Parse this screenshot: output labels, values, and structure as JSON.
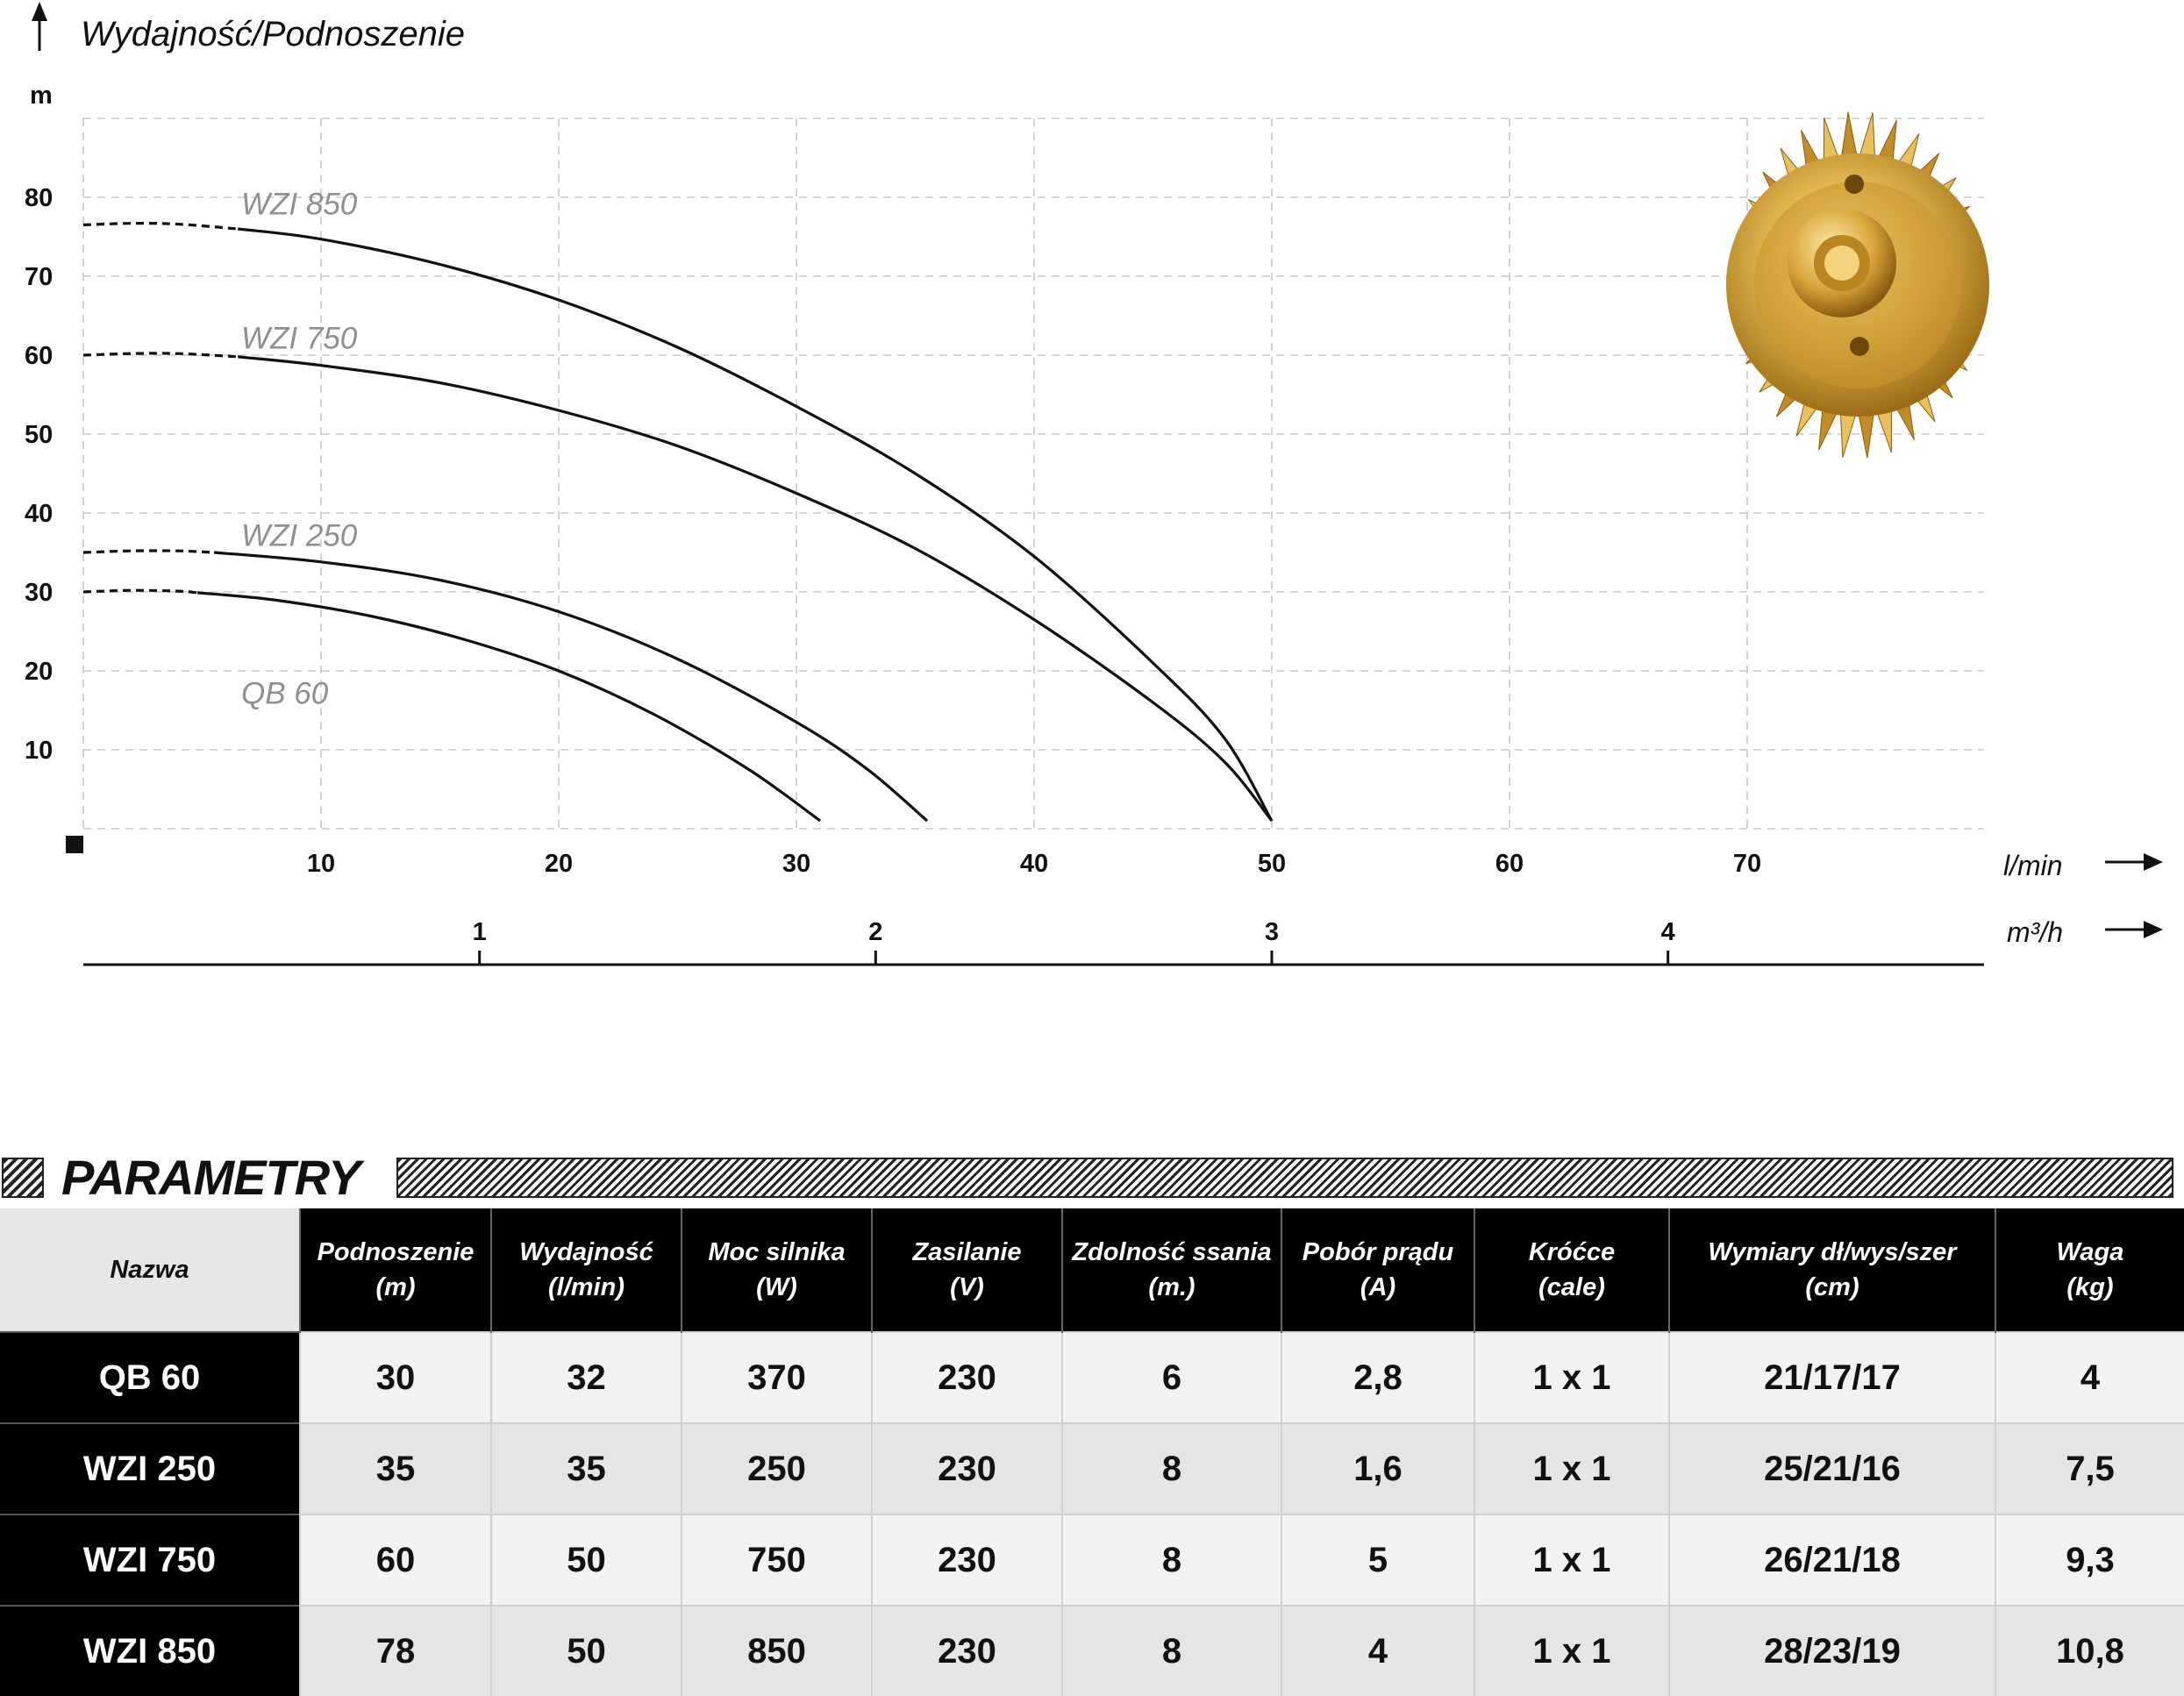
{
  "chart_data": {
    "type": "line",
    "title": "Wydajność/Podnoszenie",
    "ylabel": "m",
    "xlabel": "l/min",
    "secondary_x_label": "m³/h",
    "x_ticks": [
      10,
      20,
      30,
      40,
      50,
      60,
      70
    ],
    "y_ticks": [
      10,
      20,
      30,
      40,
      50,
      60,
      70,
      80
    ],
    "secondary_x_ticks": [
      1,
      2,
      3,
      4
    ],
    "xlim": [
      0,
      80
    ],
    "ylim": [
      0,
      90
    ],
    "grid": true,
    "series": [
      {
        "name": "WZI 850",
        "x": [
          0,
          2,
          4,
          6.5,
          10,
          15,
          20,
          25,
          30,
          35,
          40,
          45,
          48,
          50
        ],
        "y": [
          76.5,
          76.7,
          76.6,
          76,
          74.7,
          71.5,
          67,
          61,
          53.5,
          45,
          34.5,
          21,
          11.5,
          1
        ]
      },
      {
        "name": "WZI 750",
        "x": [
          0,
          2,
          4,
          6.5,
          10,
          15,
          20,
          25,
          30,
          35,
          40,
          45,
          48,
          50
        ],
        "y": [
          60,
          60.2,
          60.2,
          59.8,
          58.7,
          56.5,
          53,
          48.5,
          42.5,
          35.5,
          26.5,
          16,
          8.5,
          1
        ]
      },
      {
        "name": "WZI 250",
        "x": [
          0,
          2,
          4,
          5.5,
          10,
          15,
          20,
          25,
          30,
          33,
          35.5
        ],
        "y": [
          35,
          35.2,
          35.2,
          35,
          33.8,
          31.5,
          27.5,
          21.5,
          13.5,
          7.5,
          1
        ]
      },
      {
        "name": "QB 60",
        "x": [
          0,
          2,
          4,
          4.8,
          8,
          12,
          16,
          20,
          24,
          28,
          31
        ],
        "y": [
          30,
          30.2,
          30.1,
          29.9,
          29,
          27,
          24,
          20,
          14.5,
          7.5,
          1
        ]
      }
    ],
    "series_labels": [
      "WZI 850",
      "WZI 750",
      "WZI 250",
      "QB 60"
    ]
  },
  "params": {
    "title": "PARAMETRY",
    "headers": [
      {
        "line1": "Nazwa",
        "line2": ""
      },
      {
        "line1": "Podnoszenie",
        "line2": "(m)"
      },
      {
        "line1": "Wydajność",
        "line2": "(l/min)"
      },
      {
        "line1": "Moc silnika",
        "line2": "(W)"
      },
      {
        "line1": "Zasilanie",
        "line2": "(V)"
      },
      {
        "line1": "Zdolność ssania",
        "line2": "(m.)"
      },
      {
        "line1": "Pobór prądu",
        "line2": "(A)"
      },
      {
        "line1": "Króćce",
        "line2": "(cale)"
      },
      {
        "line1": "Wymiary dł/wys/szer",
        "line2": "(cm)"
      },
      {
        "line1": "Waga",
        "line2": "(kg)"
      }
    ],
    "rows": [
      [
        "QB 60",
        "30",
        "32",
        "370",
        "230",
        "6",
        "2,8",
        "1 x 1",
        "21/17/17",
        "4"
      ],
      [
        "WZI 250",
        "35",
        "35",
        "250",
        "230",
        "8",
        "1,6",
        "1 x 1",
        "25/21/16",
        "7,5"
      ],
      [
        "WZI 750",
        "60",
        "50",
        "750",
        "230",
        "8",
        "5",
        "1 x 1",
        "26/21/18",
        "9,3"
      ],
      [
        "WZI 850",
        "78",
        "50",
        "850",
        "230",
        "8",
        "4",
        "1 x 1",
        "28/23/19",
        "10,8"
      ]
    ]
  },
  "colors": {
    "curve": "#111111",
    "grid": "#c8c8c8",
    "series_label": "#8f8f8f",
    "impeller": "#d9a63a"
  },
  "icons": {
    "impeller_image": "brass-impeller-icon",
    "origin_marker": "square-marker-icon",
    "arrow": "arrow-icon"
  }
}
